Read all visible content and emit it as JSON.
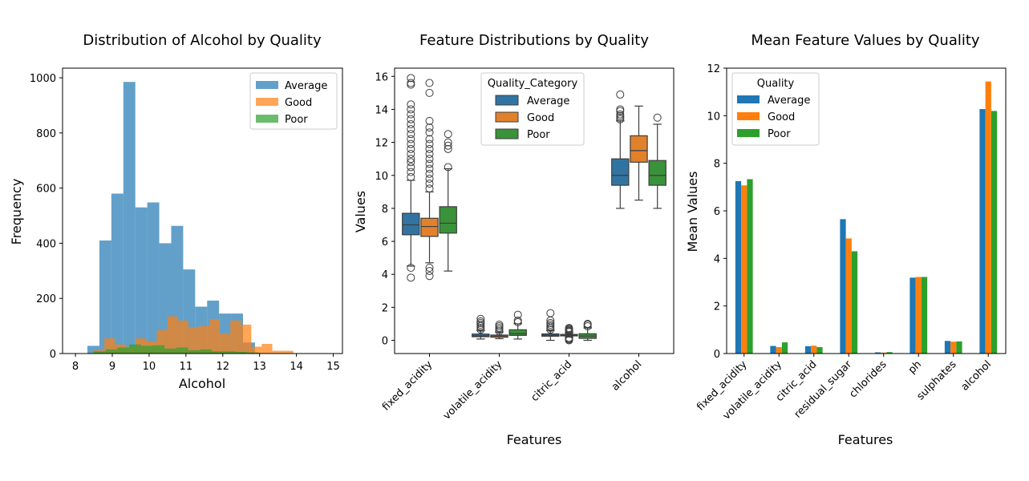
{
  "colors": {
    "Average": "#1f77b4",
    "Good": "#ff7f0e",
    "Poor": "#2ca02c",
    "box_Average": "#3274a1",
    "box_Good": "#e1812c",
    "box_Poor": "#3a923a"
  },
  "chart_data": [
    {
      "type": "histogram",
      "title": "Distribution of Alcohol by Quality",
      "xlabel": "Alcohol",
      "ylabel": "Frequency",
      "xlim": [
        7.65,
        15.25
      ],
      "ylim": [
        0,
        1035
      ],
      "xticks": [
        8,
        9,
        10,
        11,
        12,
        13,
        14,
        15
      ],
      "yticks": [
        0,
        200,
        400,
        600,
        800,
        1000
      ],
      "legend": {
        "placement": "top-right",
        "entries": [
          "Average",
          "Good",
          "Poor"
        ]
      },
      "series": [
        {
          "name": "Average",
          "alpha": 0.7,
          "bin_start": 8.0,
          "bin_width": 0.325,
          "counts": [
            0,
            28,
            410,
            580,
            985,
            530,
            548,
            400,
            463,
            305,
            170,
            192,
            145,
            145,
            40,
            0,
            0,
            0,
            0,
            0,
            0
          ]
        },
        {
          "name": "Good",
          "alpha": 0.7,
          "bin_start": 8.5,
          "bin_width": 0.285,
          "counts": [
            12,
            55,
            33,
            25,
            55,
            45,
            85,
            135,
            120,
            95,
            100,
            125,
            72,
            120,
            105,
            25,
            35,
            10,
            10
          ]
        },
        {
          "name": "Poor",
          "alpha": 0.7,
          "bin_start": 8.5,
          "bin_width": 0.32,
          "counts": [
            8,
            15,
            22,
            33,
            28,
            30,
            18,
            22,
            12,
            15,
            8,
            8,
            6,
            4
          ]
        }
      ]
    },
    {
      "type": "boxplot",
      "title": "Feature Distributions by Quality",
      "xlabel": "Features",
      "ylabel": "Values",
      "categories": [
        "fixed_acidity",
        "volatile_acidity",
        "citric_acid",
        "alcohol"
      ],
      "ylim": [
        -0.8,
        16.5
      ],
      "yticks": [
        0,
        2,
        4,
        6,
        8,
        10,
        12,
        14,
        16
      ],
      "legend": {
        "title": "Quality_Category",
        "placement": "top-center",
        "entries": [
          "Average",
          "Good",
          "Poor"
        ]
      },
      "groups": [
        {
          "feature": "fixed_acidity",
          "boxes": [
            {
              "name": "Average",
              "q1": 6.4,
              "median": 7.0,
              "q3": 7.7,
              "whisker_low": 4.5,
              "whisker_high": 9.7,
              "outliers": [
                3.8,
                4.4,
                9.9,
                10.2,
                10.5,
                10.8,
                11.0,
                11.3,
                11.6,
                11.9,
                12.2,
                12.5,
                12.8,
                13.1,
                13.4,
                13.7,
                14.0,
                14.3,
                15.5,
                15.6,
                15.9
              ]
            },
            {
              "name": "Good",
              "q1": 6.3,
              "median": 6.9,
              "q3": 7.4,
              "whisker_low": 4.7,
              "whisker_high": 9.0,
              "outliers": [
                3.9,
                4.2,
                4.4,
                9.2,
                9.5,
                9.8,
                10.1,
                10.4,
                10.7,
                11.0,
                11.3,
                11.6,
                11.9,
                12.2,
                12.6,
                12.9,
                13.3,
                15.0,
                15.6
              ]
            },
            {
              "name": "Poor",
              "q1": 6.5,
              "median": 7.1,
              "q3": 8.1,
              "whisker_low": 4.2,
              "whisker_high": 10.4,
              "outliers": [
                10.5,
                11.6,
                11.8,
                12.0,
                12.5
              ]
            }
          ]
        },
        {
          "feature": "volatile_acidity",
          "boxes": [
            {
              "name": "Average",
              "q1": 0.22,
              "median": 0.27,
              "q3": 0.38,
              "whisker_low": 0.08,
              "whisker_high": 0.6,
              "outliers": [
                0.65,
                0.75,
                0.85,
                0.95,
                1.05,
                1.15,
                1.3
              ]
            },
            {
              "name": "Good",
              "q1": 0.19,
              "median": 0.26,
              "q3": 0.32,
              "whisker_low": 0.1,
              "whisker_high": 0.5,
              "outliers": [
                0.55,
                0.65,
                0.75,
                0.85,
                0.95
              ]
            },
            {
              "name": "Poor",
              "q1": 0.3,
              "median": 0.41,
              "q3": 0.64,
              "whisker_low": 0.08,
              "whisker_high": 1.0,
              "outliers": [
                1.1,
                1.2,
                1.55
              ]
            }
          ]
        },
        {
          "feature": "citric_acid",
          "boxes": [
            {
              "name": "Average",
              "q1": 0.25,
              "median": 0.31,
              "q3": 0.39,
              "whisker_low": 0.0,
              "whisker_high": 0.6,
              "outliers": [
                0.65,
                0.75,
                0.85,
                0.95,
                1.05,
                1.2,
                1.65
              ]
            },
            {
              "name": "Good",
              "q1": 0.27,
              "median": 0.31,
              "q3": 0.36,
              "whisker_low": 0.2,
              "whisker_high": 0.45,
              "outliers": [
                0.0,
                0.05,
                0.1,
                0.15,
                0.5,
                0.55,
                0.6,
                0.65,
                0.7,
                0.75
              ]
            },
            {
              "name": "Poor",
              "q1": 0.12,
              "median": 0.26,
              "q3": 0.4,
              "whisker_low": 0.0,
              "whisker_high": 0.75,
              "outliers": [
                0.85,
                0.95,
                1.0
              ]
            }
          ]
        },
        {
          "feature": "alcohol",
          "boxes": [
            {
              "name": "Average",
              "q1": 9.4,
              "median": 10.0,
              "q3": 11.0,
              "whisker_low": 8.0,
              "whisker_high": 13.3,
              "outliers": [
                13.4,
                13.5,
                13.6,
                13.7,
                13.9,
                14.0,
                14.9
              ]
            },
            {
              "name": "Good",
              "q1": 10.8,
              "median": 11.5,
              "q3": 12.4,
              "whisker_low": 8.5,
              "whisker_high": 14.2,
              "outliers": []
            },
            {
              "name": "Poor",
              "q1": 9.4,
              "median": 10.0,
              "q3": 10.9,
              "whisker_low": 8.0,
              "whisker_high": 13.1,
              "outliers": [
                13.5
              ]
            }
          ]
        }
      ]
    },
    {
      "type": "bar",
      "title": "Mean Feature Values by Quality",
      "xlabel": "Features",
      "ylabel": "Mean Values",
      "categories": [
        "fixed_acidity",
        "volatile_acidity",
        "citric_acid",
        "residual_sugar",
        "chlorides",
        "ph",
        "sulphates",
        "alcohol"
      ],
      "ylim": [
        0,
        12
      ],
      "yticks": [
        0,
        2,
        4,
        6,
        8,
        10,
        12
      ],
      "legend": {
        "title": "Quality",
        "placement": "top-left",
        "entries": [
          "Average",
          "Good",
          "Poor"
        ]
      },
      "series": [
        {
          "name": "Average",
          "values": [
            7.25,
            0.32,
            0.31,
            5.65,
            0.05,
            3.19,
            0.53,
            10.28
          ]
        },
        {
          "name": "Good",
          "values": [
            7.07,
            0.27,
            0.33,
            4.84,
            0.04,
            3.22,
            0.5,
            11.44
          ]
        },
        {
          "name": "Poor",
          "values": [
            7.33,
            0.47,
            0.27,
            4.3,
            0.06,
            3.22,
            0.51,
            10.2
          ]
        }
      ]
    }
  ]
}
